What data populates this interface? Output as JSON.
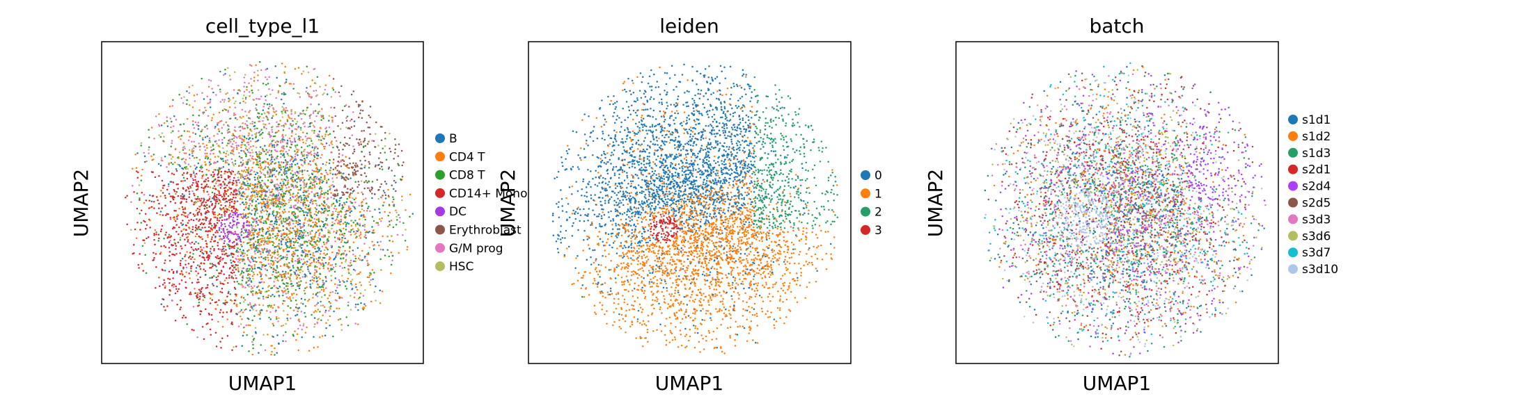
{
  "chart_data": [
    {
      "type": "scatter",
      "title": "cell_type_l1",
      "xlabel": "UMAP1",
      "ylabel": "UMAP2",
      "grid": false,
      "legend_position": "right-outside",
      "series": [
        {
          "name": "B",
          "color": "#1f77b4"
        },
        {
          "name": "CD4 T",
          "color": "#ff7f0e"
        },
        {
          "name": "CD8 T",
          "color": "#2ca02c"
        },
        {
          "name": "CD14+ Mono",
          "color": "#d62728"
        },
        {
          "name": "DC",
          "color": "#a639e3"
        },
        {
          "name": "Erythroblast",
          "color": "#8c564b"
        },
        {
          "name": "G/M prog",
          "color": "#e377c2"
        },
        {
          "name": "HSC",
          "color": "#b5bd61"
        }
      ]
    },
    {
      "type": "scatter",
      "title": "leiden",
      "xlabel": "UMAP1",
      "ylabel": "UMAP2",
      "grid": false,
      "legend_position": "right-outside",
      "series": [
        {
          "name": "0",
          "color": "#1f77b4"
        },
        {
          "name": "1",
          "color": "#ff7f0e"
        },
        {
          "name": "2",
          "color": "#279e68"
        },
        {
          "name": "3",
          "color": "#d62728"
        }
      ]
    },
    {
      "type": "scatter",
      "title": "batch",
      "xlabel": "UMAP1",
      "ylabel": "UMAP2",
      "grid": false,
      "legend_position": "right-outside",
      "series": [
        {
          "name": "s1d1",
          "color": "#1f77b4"
        },
        {
          "name": "s1d2",
          "color": "#ff7f0e"
        },
        {
          "name": "s1d3",
          "color": "#279e68"
        },
        {
          "name": "s2d1",
          "color": "#d62728"
        },
        {
          "name": "s2d4",
          "color": "#aa40fc"
        },
        {
          "name": "s2d5",
          "color": "#8c564b"
        },
        {
          "name": "s3d3",
          "color": "#e377c2"
        },
        {
          "name": "s3d6",
          "color": "#b5bd61"
        },
        {
          "name": "s3d7",
          "color": "#17becf"
        },
        {
          "name": "s3d10",
          "color": "#aec7e8"
        }
      ]
    }
  ]
}
